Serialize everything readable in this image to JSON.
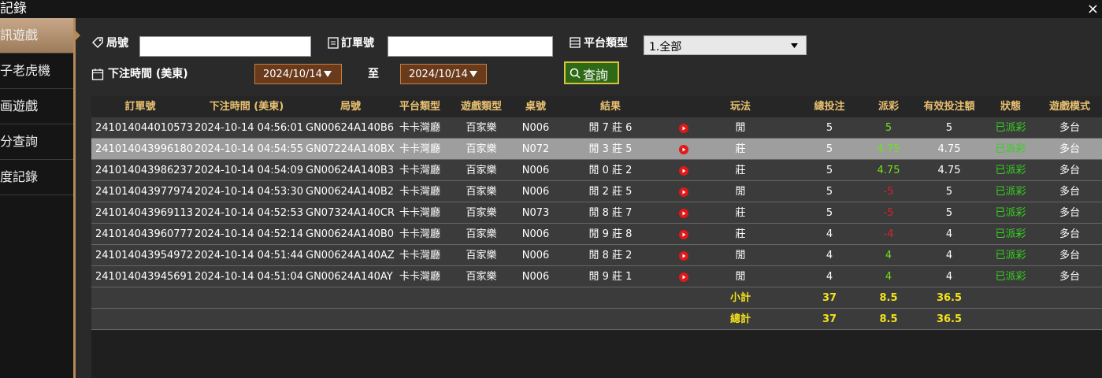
{
  "header": {
    "title": "記錄",
    "close": "×"
  },
  "sidebar": {
    "items": [
      "訊遊戲",
      "子老虎機",
      "画遊戲",
      "分查詢",
      "度記錄"
    ]
  },
  "filters": {
    "round_label": "局號",
    "order_label": "訂單號",
    "platform_label": "平台類型",
    "platform_value": "1.全部",
    "time_label": "下注時間 (美東)",
    "date_from": "2024/10/14",
    "to_label": "至",
    "date_to": "2024/10/14",
    "search_button": "查詢"
  },
  "table": {
    "columns": [
      "訂單號",
      "下注時間 (美東)",
      "局號",
      "平台類型",
      "遊戲類型",
      "桌號",
      "結果",
      "玩法",
      "總投注",
      "派彩",
      "有效投注額",
      "狀態",
      "遊戲模式"
    ],
    "rows": [
      [
        "241014044010573",
        "2024-10-14 04:56:01",
        "GN00624A140B6",
        "卡卡灣廳",
        "百家樂",
        "N006",
        "閒 7 莊 6",
        "閒",
        "5",
        "5",
        "5",
        "已派彩",
        "多台"
      ],
      [
        "241014043996180",
        "2024-10-14 04:54:55",
        "GN07224A140BX",
        "卡卡灣廳",
        "百家樂",
        "N072",
        "閒 3 莊 5",
        "莊",
        "5",
        "4.75",
        "4.75",
        "已派彩",
        "多台"
      ],
      [
        "241014043986237",
        "2024-10-14 04:54:09",
        "GN00624A140B3",
        "卡卡灣廳",
        "百家樂",
        "N006",
        "閒 0 莊 2",
        "莊",
        "5",
        "4.75",
        "4.75",
        "已派彩",
        "多台"
      ],
      [
        "241014043977974",
        "2024-10-14 04:53:30",
        "GN00624A140B2",
        "卡卡灣廳",
        "百家樂",
        "N006",
        "閒 2 莊 5",
        "閒",
        "5",
        "-5",
        "5",
        "已派彩",
        "多台"
      ],
      [
        "241014043969113",
        "2024-10-14 04:52:53",
        "GN07324A140CR",
        "卡卡灣廳",
        "百家樂",
        "N073",
        "閒 8 莊 7",
        "莊",
        "5",
        "-5",
        "5",
        "已派彩",
        "多台"
      ],
      [
        "241014043960777",
        "2024-10-14 04:52:14",
        "GN00624A140B0",
        "卡卡灣廳",
        "百家樂",
        "N006",
        "閒 9 莊 8",
        "莊",
        "4",
        "-4",
        "4",
        "已派彩",
        "多台"
      ],
      [
        "241014043954972",
        "2024-10-14 04:51:44",
        "GN00624A140AZ",
        "卡卡灣廳",
        "百家樂",
        "N006",
        "閒 8 莊 2",
        "閒",
        "4",
        "4",
        "4",
        "已派彩",
        "多台"
      ],
      [
        "241014043945691",
        "2024-10-14 04:51:04",
        "GN00624A140AY",
        "卡卡灣廳",
        "百家樂",
        "N006",
        "閒 9 莊 1",
        "閒",
        "4",
        "4",
        "4",
        "已派彩",
        "多台"
      ]
    ],
    "selected_row": 1,
    "summary": [
      [
        "小計",
        "37",
        "8.5",
        "36.5"
      ],
      [
        "總計",
        "37",
        "8.5",
        "36.5"
      ]
    ]
  }
}
